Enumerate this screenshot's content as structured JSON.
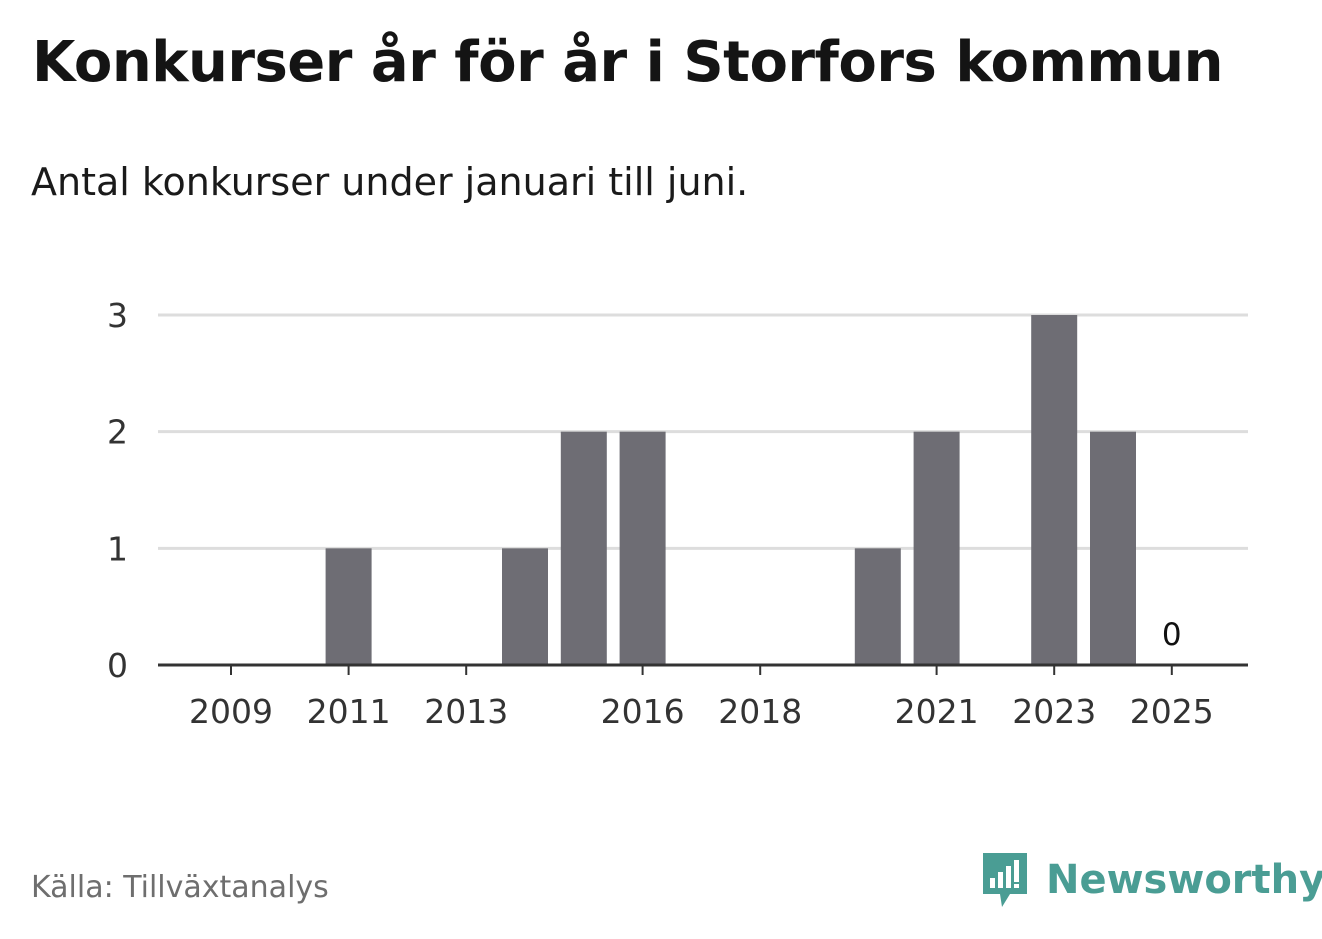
{
  "title": "Konkurser år för år i Storfors kommun",
  "subtitle": "Antal konkurser under januari till juni.",
  "source": "Källa: Tillväxtanalys",
  "brand": {
    "name": "Newsworthy",
    "color": "#4a9d94",
    "icon": "newsworthy-logo-icon"
  },
  "colors": {
    "bar": "#6e6d74",
    "grid": "#dddddd",
    "axis": "#333333"
  },
  "chart_data": {
    "type": "bar",
    "title": "Konkurser år för år i Storfors kommun",
    "subtitle": "Antal konkurser under januari till juni.",
    "xlabel": "",
    "ylabel": "",
    "categories": [
      "2009",
      "2010",
      "2011",
      "2012",
      "2013",
      "2014",
      "2015",
      "2016",
      "2017",
      "2018",
      "2019",
      "2020",
      "2021",
      "2022",
      "2023",
      "2024",
      "2025"
    ],
    "x_tick_labels": [
      "2009",
      "2011",
      "2013",
      "2016",
      "2018",
      "2021",
      "2023",
      "2025"
    ],
    "values": [
      0,
      0,
      1,
      0,
      0,
      1,
      2,
      2,
      0,
      0,
      0,
      1,
      2,
      0,
      3,
      2,
      0
    ],
    "y_ticks": [
      0,
      1,
      2,
      3
    ],
    "ylim": [
      0,
      3
    ],
    "grid": true,
    "data_labels": [
      {
        "category": "2025",
        "text": "0"
      }
    ]
  }
}
